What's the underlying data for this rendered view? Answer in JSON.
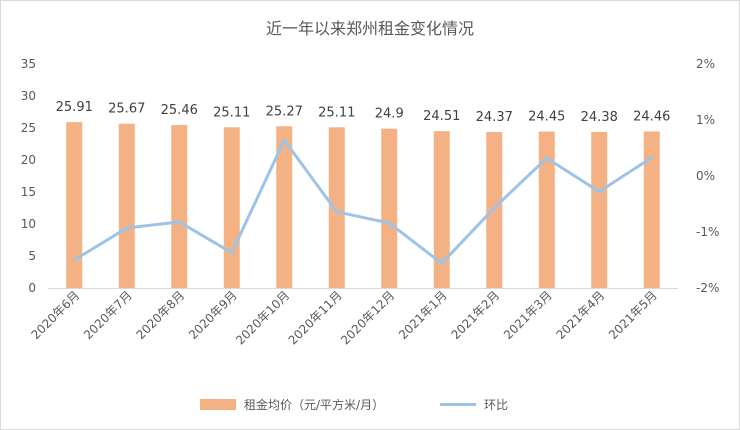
{
  "chart_data": {
    "type": "bar",
    "title": "近一年以来郑州租金变化情况",
    "categories": [
      "2020年6月",
      "2020年7月",
      "2020年8月",
      "2020年9月",
      "2020年10月",
      "2020年11月",
      "2020年12月",
      "2021年1月",
      "2021年2月",
      "2021年3月",
      "2021年4月",
      "2021年5月"
    ],
    "series": [
      {
        "name": "租金均价（元/平方米/月）",
        "type": "bar",
        "axis": "left",
        "color": "#F4B183",
        "values": [
          25.91,
          25.67,
          25.46,
          25.11,
          25.27,
          25.11,
          24.9,
          24.51,
          24.37,
          24.45,
          24.38,
          24.46
        ],
        "labels": [
          "25.91",
          "25.67",
          "25.46",
          "25.11",
          "25.27",
          "25.11",
          "24.9",
          "24.51",
          "24.37",
          "24.45",
          "24.38",
          "24.46"
        ]
      },
      {
        "name": "环比",
        "type": "line",
        "axis": "right",
        "color": "#9DC3E6",
        "values": [
          -1.5,
          -0.93,
          -0.82,
          -1.37,
          0.64,
          -0.64,
          -0.84,
          -1.56,
          -0.57,
          0.32,
          -0.28,
          0.33
        ]
      }
    ],
    "y_left": {
      "min": 0,
      "max": 35,
      "ticks": [
        "0",
        "5",
        "10",
        "15",
        "20",
        "25",
        "30",
        "35"
      ]
    },
    "y_right": {
      "min": -2,
      "max": 2,
      "ticks": [
        "-2%",
        "-1%",
        "0%",
        "1%",
        "2%"
      ]
    },
    "grid": false,
    "legend_position": "bottom"
  }
}
